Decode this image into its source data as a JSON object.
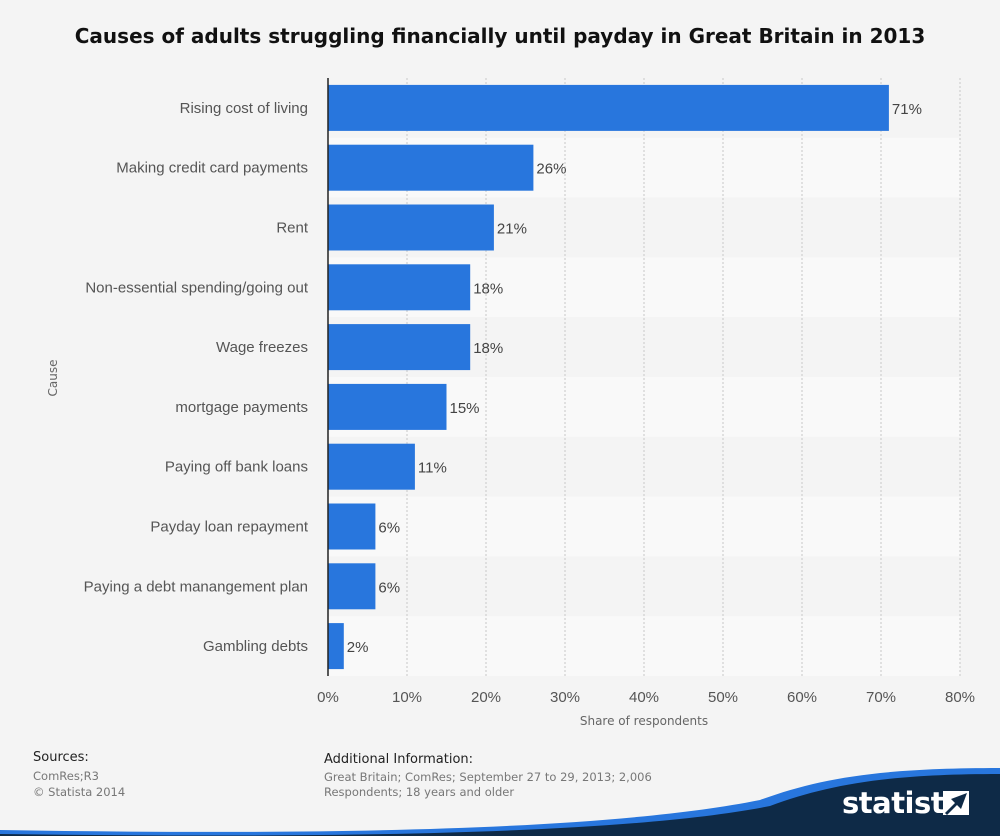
{
  "title": "Causes of adults struggling financially until payday in Great Britain in 2013",
  "chart_data": {
    "type": "bar",
    "orientation": "horizontal",
    "categories": [
      "Rising cost of living",
      "Making credit card payments",
      "Rent",
      "Non-essential spending/going out",
      "Wage freezes",
      "mortgage payments",
      "Paying off bank loans",
      "Payday loan repayment",
      "Paying a debt manangement plan",
      "Gambling debts"
    ],
    "values": [
      71,
      26,
      21,
      18,
      18,
      15,
      11,
      6,
      6,
      2
    ],
    "value_labels": [
      "71%",
      "26%",
      "21%",
      "18%",
      "18%",
      "15%",
      "11%",
      "6%",
      "6%",
      "2%"
    ],
    "xlabel": "Share of respondents",
    "ylabel": "Cause",
    "xlim": [
      0,
      80
    ],
    "xticks": [
      0,
      10,
      20,
      30,
      40,
      50,
      60,
      70,
      80
    ],
    "xtick_labels": [
      "0%",
      "10%",
      "20%",
      "30%",
      "40%",
      "50%",
      "60%",
      "70%",
      "80%"
    ],
    "grid": true,
    "bar_color": "#2876dd"
  },
  "sources": {
    "heading": "Sources:",
    "lines": [
      "ComRes;R3",
      "© Statista 2014"
    ]
  },
  "additional_info": {
    "heading": "Additional Information:",
    "text": "Great Britain; ComRes; September 27 to 29, 2013; 2,006 Respondents; 18 years and older"
  },
  "brand": "statista",
  "colors": {
    "accent": "#2876dd",
    "footer_dark": "#0e2a47",
    "background": "#f4f4f4"
  }
}
